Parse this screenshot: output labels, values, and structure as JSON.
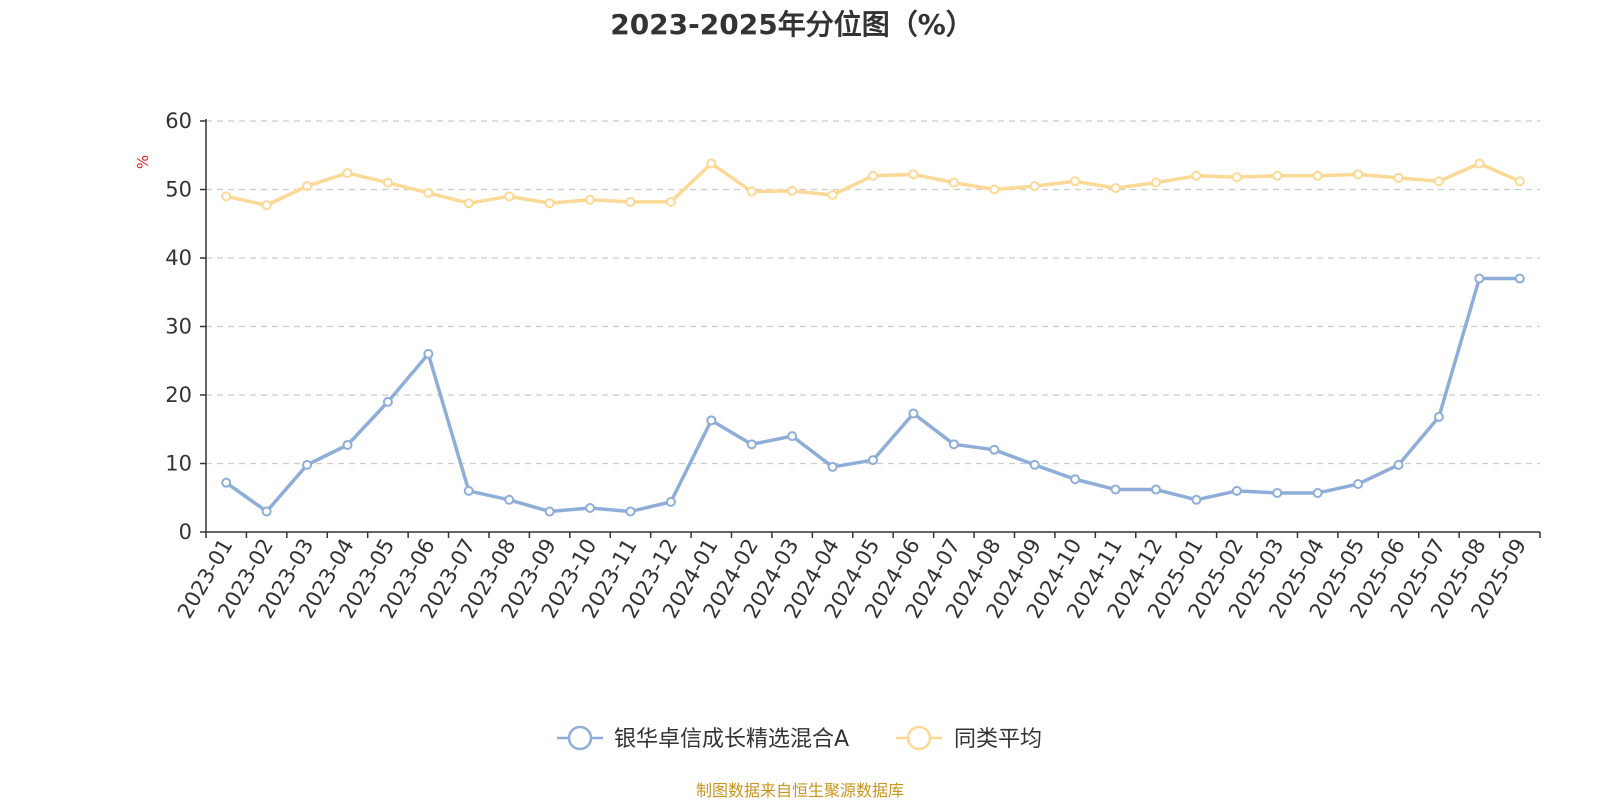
{
  "chart_data": {
    "type": "line",
    "title": "2023-2025年分位图（%）",
    "ylabel": "%",
    "xlabel": "",
    "ylim": [
      0,
      60
    ],
    "yticks": [
      0,
      10,
      20,
      30,
      40,
      50,
      60
    ],
    "grid": true,
    "legend_position": "bottom-center",
    "categories": [
      "2023-01",
      "2023-02",
      "2023-03",
      "2023-04",
      "2023-05",
      "2023-06",
      "2023-07",
      "2023-08",
      "2023-09",
      "2023-10",
      "2023-11",
      "2023-12",
      "2024-01",
      "2024-02",
      "2024-03",
      "2024-04",
      "2024-05",
      "2024-06",
      "2024-07",
      "2024-08",
      "2024-09",
      "2024-10",
      "2024-11",
      "2024-12",
      "2025-01",
      "2025-02",
      "2025-03",
      "2025-04",
      "2025-05",
      "2025-06",
      "2025-07",
      "2025-08",
      "2025-09"
    ],
    "series": [
      {
        "name": "银华卓信成长精选混合A",
        "color": "#8eaed9",
        "values": [
          7.2,
          3.0,
          9.8,
          12.7,
          19.0,
          26.0,
          6.0,
          4.7,
          3.0,
          3.5,
          3.0,
          4.4,
          16.3,
          12.8,
          14.0,
          9.5,
          10.5,
          17.3,
          12.8,
          12.0,
          9.8,
          7.7,
          6.2,
          6.2,
          4.7,
          6.0,
          5.7,
          5.7,
          7.0,
          9.8,
          16.8,
          37.0,
          37.0
        ]
      },
      {
        "name": "同类平均",
        "color": "#fcd996",
        "values": [
          49.0,
          47.7,
          50.5,
          52.4,
          51.0,
          49.5,
          48.0,
          49.0,
          48.0,
          48.5,
          48.2,
          48.2,
          53.8,
          49.7,
          49.8,
          49.2,
          52.0,
          52.2,
          51.0,
          50.0,
          50.5,
          51.2,
          50.2,
          51.0,
          52.0,
          51.8,
          52.0,
          52.0,
          52.2,
          51.7,
          51.2,
          53.8,
          51.2
        ]
      }
    ]
  },
  "source": "制图数据来自恒生聚源数据库",
  "colors": {
    "axis": "#333333",
    "grid": "#cccccc",
    "unit": "#e02020",
    "source": "#c8961e"
  }
}
